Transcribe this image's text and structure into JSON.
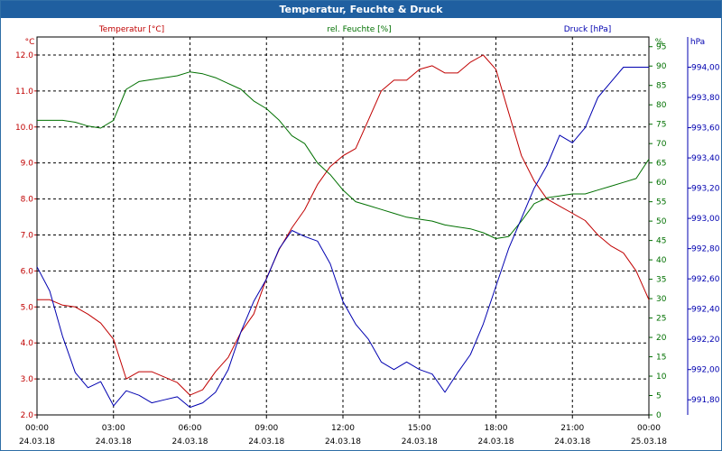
{
  "window": {
    "title": "Temperatur, Feuchte & Druck"
  },
  "colors": {
    "temperature": "#c00000",
    "humidity": "#007000",
    "pressure": "#0000b0",
    "grid": "#000000",
    "titlebar": "#1f5fa0"
  },
  "chart_data": {
    "type": "line",
    "title": "Temperatur, Feuchte & Druck",
    "grid": true,
    "x_ticks": [
      {
        "time": "00:00",
        "date": "24.03.18"
      },
      {
        "time": "03:00",
        "date": "24.03.18"
      },
      {
        "time": "06:00",
        "date": "24.03.18"
      },
      {
        "time": "09:00",
        "date": "24.03.18"
      },
      {
        "time": "12:00",
        "date": "24.03.18"
      },
      {
        "time": "15:00",
        "date": "24.03.18"
      },
      {
        "time": "18:00",
        "date": "24.03.18"
      },
      {
        "time": "21:00",
        "date": "24.03.18"
      },
      {
        "time": "00:00",
        "date": "25.03.18"
      }
    ],
    "x_range_hours": [
      0,
      24
    ],
    "axes": {
      "temperature": {
        "label": "Temperatur [°C]",
        "unit": "°C",
        "range": [
          2.0,
          12.5
        ],
        "ticks": [
          "2.0",
          "3.0",
          "4.0",
          "5.0",
          "6.0",
          "7.0",
          "8.0",
          "9.0",
          "10.0",
          "11.0",
          "12.0"
        ]
      },
      "humidity": {
        "label": "rel. Feuchte [%]",
        "unit": "%",
        "range": [
          0,
          97.5
        ],
        "ticks": [
          "0",
          "5",
          "10",
          "15",
          "20",
          "25",
          "30",
          "35",
          "40",
          "45",
          "50",
          "55",
          "60",
          "65",
          "70",
          "75",
          "80",
          "85",
          "90",
          "95"
        ]
      },
      "pressure": {
        "label": "Druck [hPa]",
        "unit": "hPa",
        "range": [
          991.7,
          994.2
        ],
        "ticks": [
          "991,80",
          "992,00",
          "992,20",
          "992,40",
          "992,60",
          "992,80",
          "993,00",
          "993,20",
          "993,40",
          "993,60",
          "993,80",
          "994,00"
        ]
      }
    },
    "series": [
      {
        "name": "Temperatur [°C]",
        "axis": "temperature",
        "x": [
          0,
          0.5,
          1,
          1.5,
          2,
          2.5,
          3,
          3.5,
          4,
          4.5,
          5,
          5.5,
          6,
          6.5,
          7,
          7.5,
          8,
          8.5,
          9,
          9.5,
          10,
          10.5,
          11,
          11.5,
          12,
          12.5,
          13,
          13.5,
          14,
          14.5,
          15,
          15.5,
          16,
          16.5,
          17,
          17.5,
          18,
          18.5,
          19,
          19.5,
          20,
          20.5,
          21,
          21.5,
          22,
          22.5,
          23,
          23.5,
          24
        ],
        "values": [
          5.2,
          5.2,
          5.05,
          5.0,
          4.8,
          4.55,
          4.1,
          3.0,
          3.2,
          3.2,
          3.05,
          2.9,
          2.55,
          2.7,
          3.2,
          3.6,
          4.3,
          4.8,
          5.8,
          6.6,
          7.2,
          7.7,
          8.4,
          8.9,
          9.2,
          9.4,
          10.2,
          11.0,
          11.3,
          11.3,
          11.6,
          11.7,
          11.5,
          11.5,
          11.8,
          12.0,
          11.6,
          10.4,
          9.2,
          8.5,
          8.0,
          7.8,
          7.6,
          7.4,
          7.0,
          6.7,
          6.5,
          6.0,
          5.2
        ]
      },
      {
        "name": "rel. Feuchte [%]",
        "axis": "humidity",
        "x": [
          0,
          0.5,
          1,
          1.5,
          2,
          2.5,
          3,
          3.5,
          4,
          4.5,
          5,
          5.5,
          6,
          6.5,
          7,
          7.5,
          8,
          8.5,
          9,
          9.5,
          10,
          10.5,
          11,
          11.5,
          12,
          12.5,
          13,
          13.5,
          14,
          14.5,
          15,
          15.5,
          16,
          16.5,
          17,
          17.5,
          18,
          18.5,
          19,
          19.5,
          20,
          20.5,
          21,
          21.5,
          22,
          22.5,
          23,
          23.5,
          24
        ],
        "values": [
          76,
          76,
          76,
          75.5,
          74.5,
          74,
          76,
          84,
          86,
          86.5,
          87,
          87.5,
          88.5,
          88,
          87,
          85.5,
          84,
          81,
          79,
          76,
          72,
          70,
          65,
          62,
          58,
          55,
          54,
          53,
          52,
          51,
          50.5,
          50,
          49,
          48.5,
          48,
          47,
          45.5,
          46,
          50,
          54.5,
          56,
          56.5,
          57,
          57,
          58,
          59,
          60,
          61,
          66
        ]
      },
      {
        "name": "Druck [hPa]",
        "axis": "pressure",
        "x": [
          0,
          0.5,
          1,
          1.5,
          2,
          2.5,
          3,
          3.5,
          4,
          4.5,
          5,
          5.5,
          6,
          6.5,
          7,
          7.5,
          8,
          8.5,
          9,
          9.5,
          10,
          10.5,
          11,
          11.5,
          12,
          12.5,
          13,
          13.5,
          14,
          14.5,
          15,
          15.5,
          16,
          16.5,
          17,
          17.5,
          18,
          18.5,
          19,
          19.5,
          20,
          20.5,
          21,
          21.5,
          22,
          22.5,
          23,
          23.5,
          24
        ],
        "values": [
          992.68,
          992.52,
          992.22,
          991.98,
          991.88,
          991.92,
          991.76,
          991.86,
          991.83,
          991.78,
          991.8,
          991.82,
          991.75,
          991.78,
          991.85,
          992.0,
          992.25,
          992.45,
          992.6,
          992.8,
          992.92,
          992.88,
          992.85,
          992.7,
          992.45,
          992.3,
          992.2,
          992.05,
          992.0,
          992.05,
          992.0,
          991.97,
          991.85,
          991.98,
          992.1,
          992.3,
          992.55,
          992.8,
          993.0,
          993.2,
          993.35,
          993.55,
          993.5,
          993.6,
          993.8,
          993.9,
          994.0,
          994.0,
          994.0
        ]
      }
    ]
  }
}
